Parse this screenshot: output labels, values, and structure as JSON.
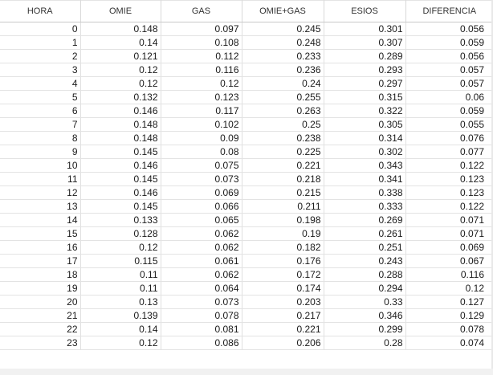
{
  "table": {
    "columns": [
      "HORA",
      "OMIE",
      "GAS",
      "OMIE+GAS",
      "ESIOS",
      "DIFERENCIA"
    ],
    "rows": [
      [
        "0",
        "0.148",
        "0.097",
        "0.245",
        "0.301",
        "0.056"
      ],
      [
        "1",
        "0.14",
        "0.108",
        "0.248",
        "0.307",
        "0.059"
      ],
      [
        "2",
        "0.121",
        "0.112",
        "0.233",
        "0.289",
        "0.056"
      ],
      [
        "3",
        "0.12",
        "0.116",
        "0.236",
        "0.293",
        "0.057"
      ],
      [
        "4",
        "0.12",
        "0.12",
        "0.24",
        "0.297",
        "0.057"
      ],
      [
        "5",
        "0.132",
        "0.123",
        "0.255",
        "0.315",
        "0.06"
      ],
      [
        "6",
        "0.146",
        "0.117",
        "0.263",
        "0.322",
        "0.059"
      ],
      [
        "7",
        "0.148",
        "0.102",
        "0.25",
        "0.305",
        "0.055"
      ],
      [
        "8",
        "0.148",
        "0.09",
        "0.238",
        "0.314",
        "0.076"
      ],
      [
        "9",
        "0.145",
        "0.08",
        "0.225",
        "0.302",
        "0.077"
      ],
      [
        "10",
        "0.146",
        "0.075",
        "0.221",
        "0.343",
        "0.122"
      ],
      [
        "11",
        "0.145",
        "0.073",
        "0.218",
        "0.341",
        "0.123"
      ],
      [
        "12",
        "0.146",
        "0.069",
        "0.215",
        "0.338",
        "0.123"
      ],
      [
        "13",
        "0.145",
        "0.066",
        "0.211",
        "0.333",
        "0.122"
      ],
      [
        "14",
        "0.133",
        "0.065",
        "0.198",
        "0.269",
        "0.071"
      ],
      [
        "15",
        "0.128",
        "0.062",
        "0.19",
        "0.261",
        "0.071"
      ],
      [
        "16",
        "0.12",
        "0.062",
        "0.182",
        "0.251",
        "0.069"
      ],
      [
        "17",
        "0.115",
        "0.061",
        "0.176",
        "0.243",
        "0.067"
      ],
      [
        "18",
        "0.11",
        "0.062",
        "0.172",
        "0.288",
        "0.116"
      ],
      [
        "19",
        "0.11",
        "0.064",
        "0.174",
        "0.294",
        "0.12"
      ],
      [
        "20",
        "0.13",
        "0.073",
        "0.203",
        "0.33",
        "0.127"
      ],
      [
        "21",
        "0.139",
        "0.078",
        "0.217",
        "0.346",
        "0.129"
      ],
      [
        "22",
        "0.14",
        "0.081",
        "0.221",
        "0.299",
        "0.078"
      ],
      [
        "23",
        "0.12",
        "0.086",
        "0.206",
        "0.28",
        "0.074"
      ]
    ]
  }
}
